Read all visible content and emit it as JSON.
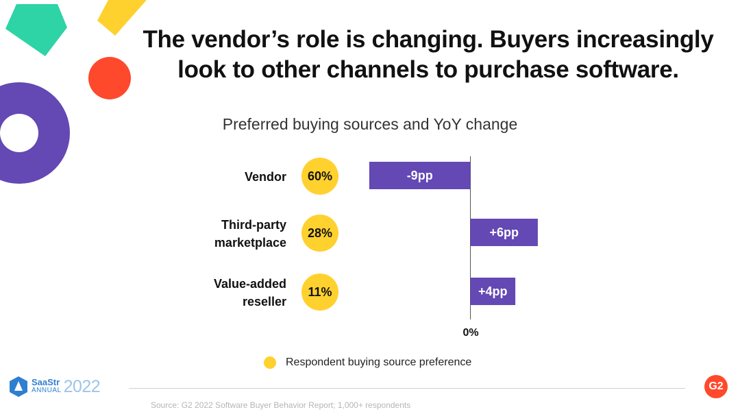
{
  "slide_title": {
    "line1": "The vendor’s role is changing. Buyers increasingly",
    "line2": "look to other channels to purchase software."
  },
  "chart_data": {
    "type": "bar",
    "orientation": "horizontal",
    "title": "Preferred buying sources and YoY change",
    "categories": [
      {
        "label_lines": [
          "Vendor"
        ],
        "preference": "60%",
        "yoy_change": -9,
        "yoy_label": "-9pp"
      },
      {
        "label_lines": [
          "Third-party",
          "marketplace"
        ],
        "preference": "28%",
        "yoy_change": 6,
        "yoy_label": "+6pp"
      },
      {
        "label_lines": [
          "Value-added",
          "reseller"
        ],
        "preference": "11%",
        "yoy_change": 4,
        "yoy_label": "+4pp"
      }
    ],
    "preference_values": [
      60,
      28,
      11
    ],
    "yoy_values": [
      -9,
      6,
      4
    ],
    "xlim": [
      -9,
      9
    ],
    "zero_label": "0%",
    "legend": "Respondent buying source preference",
    "grid": false,
    "colors": {
      "bar": "#6448B4",
      "bubble": "#FFD12E"
    }
  },
  "footer": {
    "source": "Source: G2 2022 Software Buyer Behavior Report; 1,000+ respondents",
    "saastr_name": "SaaStr",
    "saastr_annual": "ANNUAL",
    "saastr_year": "2022",
    "g2_logo_text": "G2"
  },
  "decorations": {
    "colors": {
      "teal": "#2ED3A6",
      "yellow": "#FFD12E",
      "red": "#FF492C",
      "purple": "#6448B4"
    }
  }
}
